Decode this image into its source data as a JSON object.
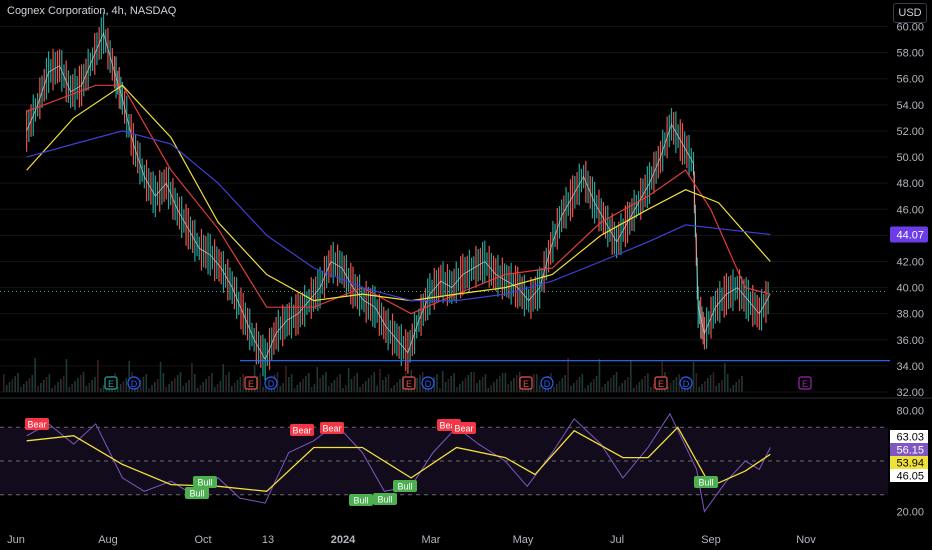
{
  "header": {
    "title": "Cognex Corporation, 4h, NASDAQ",
    "currency_button": "USD"
  },
  "colors": {
    "background": "#000000",
    "price_line": "#d9d9d9",
    "up": "#26a69a",
    "down": "#ef5350",
    "ma_fast": "#e03b3b",
    "ma_mid": "#f0e03a",
    "ma_slow": "#3f3fd6",
    "support_line": "#2f6fff",
    "rsi": "#7e57c2",
    "rsi_signal": "#f0e03a",
    "bear": "#f23645",
    "bull": "#4caf50",
    "grid": "#141414"
  },
  "price_axis": {
    "ticks": [
      "60.00",
      "58.00",
      "56.00",
      "54.00",
      "52.00",
      "50.00",
      "48.00",
      "46.00",
      "44.00",
      "42.00",
      "40.00",
      "38.00",
      "36.00",
      "34.00",
      "32.00"
    ]
  },
  "time_axis": {
    "labels": [
      "Jun",
      "Aug",
      "Oct",
      "13",
      "2024",
      "Mar",
      "May",
      "Jul",
      "Sep",
      "Nov"
    ]
  },
  "price_badges": {
    "slow_ma": "44.07"
  },
  "event_markers": [
    {
      "label": "E",
      "kind": "earnings"
    },
    {
      "label": "D",
      "kind": "dividend"
    },
    {
      "label": "E",
      "kind": "earnings"
    },
    {
      "label": "D",
      "kind": "dividend"
    },
    {
      "label": "E",
      "kind": "earnings"
    },
    {
      "label": "D",
      "kind": "dividend"
    },
    {
      "label": "E",
      "kind": "earnings"
    },
    {
      "label": "D",
      "kind": "dividend"
    },
    {
      "label": "E",
      "kind": "earnings"
    },
    {
      "label": "D",
      "kind": "dividend"
    },
    {
      "label": "E",
      "kind": "upcoming-earnings"
    }
  ],
  "oscillator": {
    "axis_ticks": [
      "80.00",
      "20.00"
    ],
    "badges": [
      "63.03",
      "56.15",
      "53.94",
      "46.05"
    ],
    "signals": [
      {
        "label": "Bear"
      },
      {
        "label": "Bull"
      },
      {
        "label": "Bull"
      },
      {
        "label": "Bear"
      },
      {
        "label": "Bear"
      },
      {
        "label": "Bull"
      },
      {
        "label": "Bull"
      },
      {
        "label": "Bull"
      },
      {
        "label": "Bear"
      },
      {
        "label": "Bear"
      },
      {
        "label": "Bull"
      }
    ]
  },
  "chart_data": {
    "type": "line",
    "price_series": {
      "name": "",
      "points": [
        [
          "2023-06-01",
          52.0
        ],
        [
          "2023-06-08",
          54.0
        ],
        [
          "2023-06-15",
          56.5
        ],
        [
          "2023-06-22",
          57.0
        ],
        [
          "2023-06-29",
          55.0
        ],
        [
          "2023-07-06",
          55.5
        ],
        [
          "2023-07-13",
          57.5
        ],
        [
          "2023-07-20",
          59.5
        ],
        [
          "2023-07-27",
          56.5
        ],
        [
          "2023-08-01",
          54.5
        ],
        [
          "2023-08-08",
          51.0
        ],
        [
          "2023-08-15",
          48.5
        ],
        [
          "2023-08-22",
          47.0
        ],
        [
          "2023-08-29",
          48.0
        ],
        [
          "2023-09-05",
          46.0
        ],
        [
          "2023-09-12",
          44.5
        ],
        [
          "2023-09-19",
          43.0
        ],
        [
          "2023-09-26",
          42.5
        ],
        [
          "2023-10-03",
          41.5
        ],
        [
          "2023-10-10",
          40.0
        ],
        [
          "2023-10-17",
          38.0
        ],
        [
          "2023-10-24",
          36.0
        ],
        [
          "2023-10-31",
          34.5
        ],
        [
          "2023-11-07",
          36.5
        ],
        [
          "2023-11-14",
          37.5
        ],
        [
          "2023-11-21",
          38.0
        ],
        [
          "2023-11-28",
          39.0
        ],
        [
          "2023-12-05",
          40.0
        ],
        [
          "2023-12-12",
          42.0
        ],
        [
          "2023-12-19",
          41.5
        ],
        [
          "2023-12-26",
          40.0
        ],
        [
          "2024-01-02",
          39.0
        ],
        [
          "2024-01-09",
          38.5
        ],
        [
          "2024-01-16",
          37.0
        ],
        [
          "2024-01-23",
          36.0
        ],
        [
          "2024-01-30",
          35.0
        ],
        [
          "2024-02-06",
          37.5
        ],
        [
          "2024-02-13",
          39.5
        ],
        [
          "2024-02-20",
          40.5
        ],
        [
          "2024-02-27",
          40.0
        ],
        [
          "2024-03-05",
          41.0
        ],
        [
          "2024-03-12",
          41.5
        ],
        [
          "2024-03-19",
          42.0
        ],
        [
          "2024-03-26",
          41.0
        ],
        [
          "2024-04-02",
          40.5
        ],
        [
          "2024-04-09",
          40.0
        ],
        [
          "2024-04-16",
          39.0
        ],
        [
          "2024-04-23",
          40.0
        ],
        [
          "2024-04-30",
          43.0
        ],
        [
          "2024-05-07",
          45.5
        ],
        [
          "2024-05-14",
          47.0
        ],
        [
          "2024-05-21",
          48.5
        ],
        [
          "2024-05-28",
          46.5
        ],
        [
          "2024-06-04",
          45.0
        ],
        [
          "2024-06-11",
          43.5
        ],
        [
          "2024-06-18",
          45.0
        ],
        [
          "2024-06-25",
          46.5
        ],
        [
          "2024-07-02",
          48.0
        ],
        [
          "2024-07-09",
          50.0
        ],
        [
          "2024-07-16",
          52.5
        ],
        [
          "2024-07-23",
          51.0
        ],
        [
          "2024-07-30",
          49.5
        ],
        [
          "2024-08-02",
          38.5
        ],
        [
          "2024-08-06",
          36.5
        ],
        [
          "2024-08-13",
          38.5
        ],
        [
          "2024-08-20",
          39.5
        ],
        [
          "2024-08-27",
          40.0
        ],
        [
          "2024-09-03",
          39.0
        ],
        [
          "2024-09-10",
          38.0
        ],
        [
          "2024-09-17",
          39.5
        ]
      ]
    },
    "moving_averages": [
      {
        "name": "",
        "color": "#e03b3b",
        "points": [
          [
            "2023-06-01",
            53.5
          ],
          [
            "2023-07-15",
            55.5
          ],
          [
            "2023-08-01",
            55.5
          ],
          [
            "2023-09-01",
            49.0
          ],
          [
            "2023-10-01",
            44.5
          ],
          [
            "2023-11-01",
            38.5
          ],
          [
            "2023-12-01",
            38.5
          ],
          [
            "2024-01-01",
            40.0
          ],
          [
            "2024-02-01",
            38.0
          ],
          [
            "2024-03-01",
            39.5
          ],
          [
            "2024-04-01",
            41.0
          ],
          [
            "2024-05-01",
            41.5
          ],
          [
            "2024-06-01",
            45.0
          ],
          [
            "2024-07-01",
            47.0
          ],
          [
            "2024-07-25",
            49.0
          ],
          [
            "2024-08-10",
            46.0
          ],
          [
            "2024-09-01",
            40.0
          ],
          [
            "2024-09-17",
            39.5
          ]
        ]
      },
      {
        "name": "",
        "color": "#f0e03a",
        "points": [
          [
            "2023-06-01",
            49.0
          ],
          [
            "2023-07-01",
            53.0
          ],
          [
            "2023-08-01",
            55.5
          ],
          [
            "2023-09-01",
            51.5
          ],
          [
            "2023-10-01",
            45.0
          ],
          [
            "2023-11-01",
            41.0
          ],
          [
            "2023-12-01",
            39.0
          ],
          [
            "2024-01-01",
            39.5
          ],
          [
            "2024-02-01",
            39.0
          ],
          [
            "2024-03-01",
            39.5
          ],
          [
            "2024-04-01",
            40.0
          ],
          [
            "2024-05-01",
            41.0
          ],
          [
            "2024-06-01",
            44.0
          ],
          [
            "2024-07-01",
            46.0
          ],
          [
            "2024-07-25",
            47.5
          ],
          [
            "2024-08-15",
            46.5
          ],
          [
            "2024-09-17",
            42.0
          ]
        ]
      },
      {
        "name": "",
        "color": "#3f3fd6",
        "points": [
          [
            "2023-06-01",
            50.0
          ],
          [
            "2023-07-01",
            51.0
          ],
          [
            "2023-08-01",
            52.0
          ],
          [
            "2023-09-01",
            51.0
          ],
          [
            "2023-10-01",
            48.0
          ],
          [
            "2023-11-01",
            44.0
          ],
          [
            "2023-12-01",
            41.5
          ],
          [
            "2024-01-01",
            40.0
          ],
          [
            "2024-02-01",
            39.0
          ],
          [
            "2024-03-01",
            39.0
          ],
          [
            "2024-04-01",
            39.5
          ],
          [
            "2024-05-01",
            40.5
          ],
          [
            "2024-06-01",
            42.0
          ],
          [
            "2024-07-01",
            43.5
          ],
          [
            "2024-07-25",
            44.8
          ],
          [
            "2024-09-17",
            44.07
          ]
        ]
      }
    ],
    "support_level": 34.4,
    "last_price": 39.7,
    "ylim": [
      32,
      60.5
    ],
    "xlim": [
      "2023-05-15",
      "2024-12-01"
    ],
    "rsi": {
      "upper_band": 70,
      "lower_band": 30,
      "mid": 50,
      "ylim": [
        15,
        85
      ],
      "points": [
        [
          "2023-06-01",
          65
        ],
        [
          "2023-06-15",
          72
        ],
        [
          "2023-07-01",
          60
        ],
        [
          "2023-07-15",
          72
        ],
        [
          "2023-08-01",
          40
        ],
        [
          "2023-08-15",
          32
        ],
        [
          "2023-09-01",
          38
        ],
        [
          "2023-09-15",
          30
        ],
        [
          "2023-10-01",
          40
        ],
        [
          "2023-10-15",
          28
        ],
        [
          "2023-10-31",
          25
        ],
        [
          "2023-11-15",
          55
        ],
        [
          "2023-12-01",
          62
        ],
        [
          "2023-12-15",
          72
        ],
        [
          "2024-01-01",
          55
        ],
        [
          "2024-01-15",
          32
        ],
        [
          "2024-02-01",
          35
        ],
        [
          "2024-02-15",
          55
        ],
        [
          "2024-03-01",
          70
        ],
        [
          "2024-03-15",
          60
        ],
        [
          "2024-04-01",
          50
        ],
        [
          "2024-04-15",
          35
        ],
        [
          "2024-05-01",
          55
        ],
        [
          "2024-05-15",
          75
        ],
        [
          "2024-06-01",
          60
        ],
        [
          "2024-06-15",
          40
        ],
        [
          "2024-07-01",
          58
        ],
        [
          "2024-07-15",
          78
        ],
        [
          "2024-08-01",
          45
        ],
        [
          "2024-08-06",
          20
        ],
        [
          "2024-08-20",
          38
        ],
        [
          "2024-09-01",
          50
        ],
        [
          "2024-09-10",
          45
        ],
        [
          "2024-09-17",
          58
        ]
      ],
      "signal_points": [
        [
          "2023-06-01",
          62
        ],
        [
          "2023-07-01",
          65
        ],
        [
          "2023-08-01",
          48
        ],
        [
          "2023-09-01",
          36
        ],
        [
          "2023-10-01",
          35
        ],
        [
          "2023-11-01",
          32
        ],
        [
          "2023-12-01",
          58
        ],
        [
          "2024-01-01",
          58
        ],
        [
          "2024-02-01",
          40
        ],
        [
          "2024-03-01",
          58
        ],
        [
          "2024-04-01",
          52
        ],
        [
          "2024-04-20",
          42
        ],
        [
          "2024-05-15",
          68
        ],
        [
          "2024-06-15",
          52
        ],
        [
          "2024-07-01",
          52
        ],
        [
          "2024-07-20",
          70
        ],
        [
          "2024-08-10",
          35
        ],
        [
          "2024-09-01",
          44
        ],
        [
          "2024-09-17",
          54
        ]
      ]
    }
  }
}
